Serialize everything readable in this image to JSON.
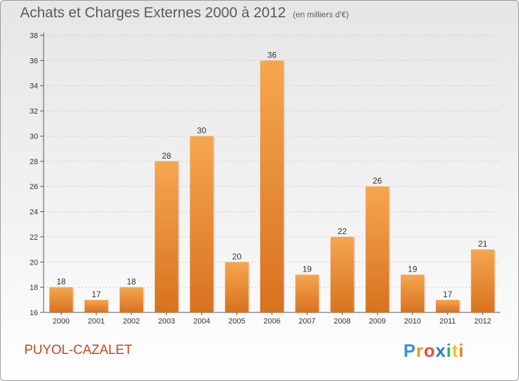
{
  "title": "Achats et Charges Externes 2000 à 2012",
  "subtitle": "(en milliers d'€)",
  "location": "PUYOL-CAZALET",
  "brand": {
    "letters": [
      "P",
      "r",
      "o",
      "x",
      "i",
      "t",
      "i"
    ],
    "colors": [
      "#3a8fd8",
      "#f39c12",
      "#e74c3c",
      "#2c7bd0",
      "#27ae60",
      "#f1c40f",
      "#e67e22"
    ]
  },
  "colors": {
    "bar_top": "#f6a64f",
    "bar_bottom": "#d8721e",
    "axis": "#555555",
    "grid": "#cccccc"
  },
  "chart_data": {
    "type": "bar",
    "categories": [
      "2000",
      "2001",
      "2002",
      "2003",
      "2004",
      "2005",
      "2006",
      "2007",
      "2008",
      "2009",
      "2010",
      "2011",
      "2012"
    ],
    "values": [
      18,
      17,
      18,
      28,
      30,
      20,
      36,
      19,
      22,
      26,
      19,
      17,
      21
    ],
    "ylim": [
      16,
      38
    ],
    "yticks": [
      16,
      18,
      20,
      22,
      24,
      26,
      28,
      30,
      32,
      34,
      36,
      38
    ],
    "grid": true,
    "legend": "none"
  }
}
